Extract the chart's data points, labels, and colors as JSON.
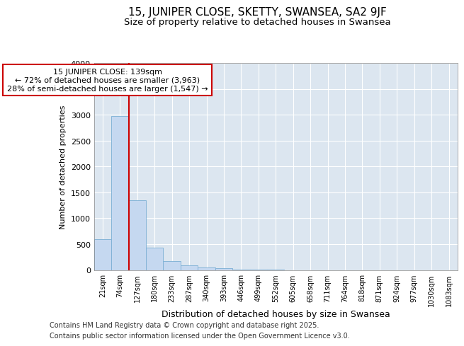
{
  "title": "15, JUNIPER CLOSE, SKETTY, SWANSEA, SA2 9JF",
  "subtitle": "Size of property relative to detached houses in Swansea",
  "xlabel": "Distribution of detached houses by size in Swansea",
  "ylabel": "Number of detached properties",
  "categories": [
    "21sqm",
    "74sqm",
    "127sqm",
    "180sqm",
    "233sqm",
    "287sqm",
    "340sqm",
    "393sqm",
    "446sqm",
    "499sqm",
    "552sqm",
    "605sqm",
    "658sqm",
    "711sqm",
    "764sqm",
    "818sqm",
    "871sqm",
    "924sqm",
    "977sqm",
    "1030sqm",
    "1083sqm"
  ],
  "bar_values": [
    600,
    2980,
    1350,
    430,
    175,
    85,
    50,
    30,
    10,
    3,
    1,
    0,
    0,
    0,
    0,
    0,
    0,
    0,
    0,
    0,
    0
  ],
  "bar_color": "#c5d8f0",
  "bar_edge_color": "#7bafd4",
  "vline_color": "#cc0000",
  "annotation_text": "15 JUNIPER CLOSE: 139sqm\n← 72% of detached houses are smaller (3,963)\n28% of semi-detached houses are larger (1,547) →",
  "annotation_box_color": "#ffffff",
  "annotation_box_edge_color": "#cc0000",
  "ylim": [
    0,
    4000
  ],
  "yticks": [
    0,
    500,
    1000,
    1500,
    2000,
    2500,
    3000,
    3500,
    4000
  ],
  "background_color": "#dce6f0",
  "footer_line1": "Contains HM Land Registry data © Crown copyright and database right 2025.",
  "footer_line2": "Contains public sector information licensed under the Open Government Licence v3.0.",
  "title_fontsize": 11,
  "subtitle_fontsize": 9.5,
  "annot_fontsize": 8,
  "ylabel_fontsize": 8,
  "xlabel_fontsize": 9,
  "footer_fontsize": 7
}
